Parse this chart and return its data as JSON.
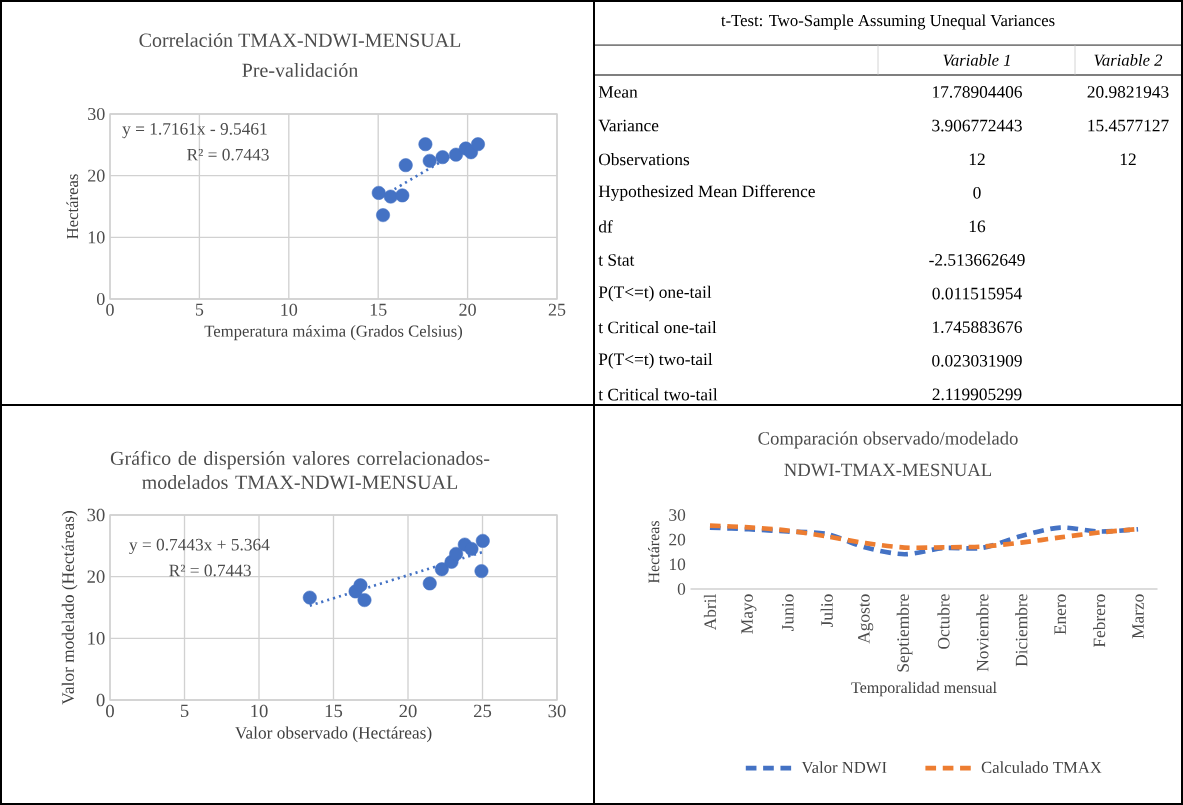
{
  "chart_data": [
    {
      "type": "scatter",
      "title": "Correlación TMAX-NDWI-MENSUAL",
      "subtitle": "Pre-validación",
      "xlabel": "Temperatura máxima (Grados Celsius)",
      "ylabel": "Hectáreas",
      "annotations": [
        "y = 1.7161x - 9.5461",
        "R² = 0.7443"
      ],
      "xlim": [
        0,
        25
      ],
      "xticks": [
        0,
        5,
        10,
        15,
        20,
        25
      ],
      "ylim": [
        0,
        30
      ],
      "yticks": [
        0,
        10,
        20,
        30
      ],
      "grid": true,
      "series": [
        {
          "marker": "circle",
          "color": "#4472c4",
          "x": [
            15.03,
            15.27,
            15.7,
            16.35,
            16.54,
            17.64,
            17.88,
            18.6,
            19.35,
            19.9,
            20.19,
            20.58
          ],
          "values": [
            17.2,
            13.6,
            16.6,
            16.8,
            21.7,
            25.1,
            22.4,
            23.0,
            23.4,
            24.4,
            23.8,
            25.1
          ]
        },
        {
          "type": "line",
          "line_style": "dotted",
          "marker": "none",
          "color": "#4472c4",
          "x": [
            15.03,
            20.58
          ],
          "values": [
            16.3,
            25.8
          ]
        }
      ]
    },
    {
      "type": "other",
      "title": "t-Test: Two-Sample Assuming Unequal Variances",
      "categories": [
        "Mean",
        "Variance",
        "Observations",
        "Hypothesized Mean Difference",
        "df",
        "t Stat",
        "P(T<=t) one-tail",
        "t Critical one-tail",
        "P(T<=t) two-tail",
        "t Critical two-tail"
      ],
      "series": [
        {
          "name": "Variable 1",
          "values": [
            17.78904406,
            3.906772443,
            12,
            0,
            16,
            -2.513662649,
            0.011515954,
            1.745883676,
            0.023031909,
            2.119905299
          ],
          "value_labels": [
            "17.78904406",
            "3.906772443",
            "12",
            "0",
            "16",
            "-2.513662649",
            "0.011515954",
            "1.745883676",
            "0.023031909",
            "2.119905299"
          ]
        },
        {
          "name": "Variable 2",
          "values": [
            20.9821943,
            15.4577127,
            12,
            null,
            null,
            null,
            null,
            null,
            null,
            null
          ],
          "value_labels": [
            "20.9821943",
            "15.4577127",
            "12",
            null,
            null,
            null,
            null,
            null,
            null,
            null
          ]
        }
      ]
    },
    {
      "type": "scatter",
      "title": "Gráfico de dispersión valores correlacionados-modelados TMAX-NDWI-MENSUAL",
      "xlabel": "Valor observado (Hectáreas)",
      "ylabel": "Valor modelado (Hectáreas)",
      "annotations": [
        "y = 0.7443x + 5.364",
        "R² = 0.7443"
      ],
      "xlim": [
        0,
        30
      ],
      "xticks": [
        0,
        5,
        10,
        15,
        20,
        25,
        30
      ],
      "ylim": [
        0,
        30
      ],
      "yticks": [
        0,
        10,
        20,
        30
      ],
      "grid": true,
      "series": [
        {
          "marker": "circle",
          "color": "#4472c4",
          "x": [
            13.41,
            16.48,
            16.81,
            17.08,
            21.46,
            22.27,
            22.92,
            23.23,
            23.81,
            24.26,
            25.02,
            24.93
          ],
          "values": [
            16.6,
            17.6,
            18.6,
            16.2,
            18.9,
            21.2,
            22.4,
            23.7,
            25.2,
            24.5,
            25.8,
            20.9
          ]
        },
        {
          "type": "line",
          "line_style": "dotted",
          "marker": "none",
          "color": "#4472c4",
          "x": [
            13.41,
            25.02
          ],
          "values": [
            15.3,
            24.0
          ]
        }
      ]
    },
    {
      "type": "line",
      "title": "Comparación observado/modelado",
      "subtitle": "NDWI-TMAX-MESNUAL",
      "xlabel": "Temporalidad mensual",
      "ylabel": "Hectáreas",
      "categories": [
        "Abril",
        "Mayo",
        "Junio",
        "Julio",
        "Agosto",
        "Septiembre",
        "Octubre",
        "Noviembre",
        "Diciembre",
        "Enero",
        "Febrero",
        "Marzo"
      ],
      "ylim": [
        0,
        30
      ],
      "yticks": [
        0,
        10,
        20,
        30
      ],
      "line_style": "dashed",
      "legend": "bottom",
      "series": [
        {
          "name": "Valor NDWI",
          "color": "#4472c4",
          "values": [
            24.9,
            24.2,
            23.3,
            22.3,
            16.8,
            14.1,
            16.6,
            16.7,
            21.5,
            24.9,
            23.3,
            24.2
          ]
        },
        {
          "name": "Calculado TMAX",
          "color": "#ed7d31",
          "values": [
            25.7,
            25.0,
            23.7,
            21.3,
            18.6,
            16.8,
            16.9,
            17.2,
            18.8,
            20.9,
            22.9,
            24.3
          ]
        }
      ]
    }
  ]
}
